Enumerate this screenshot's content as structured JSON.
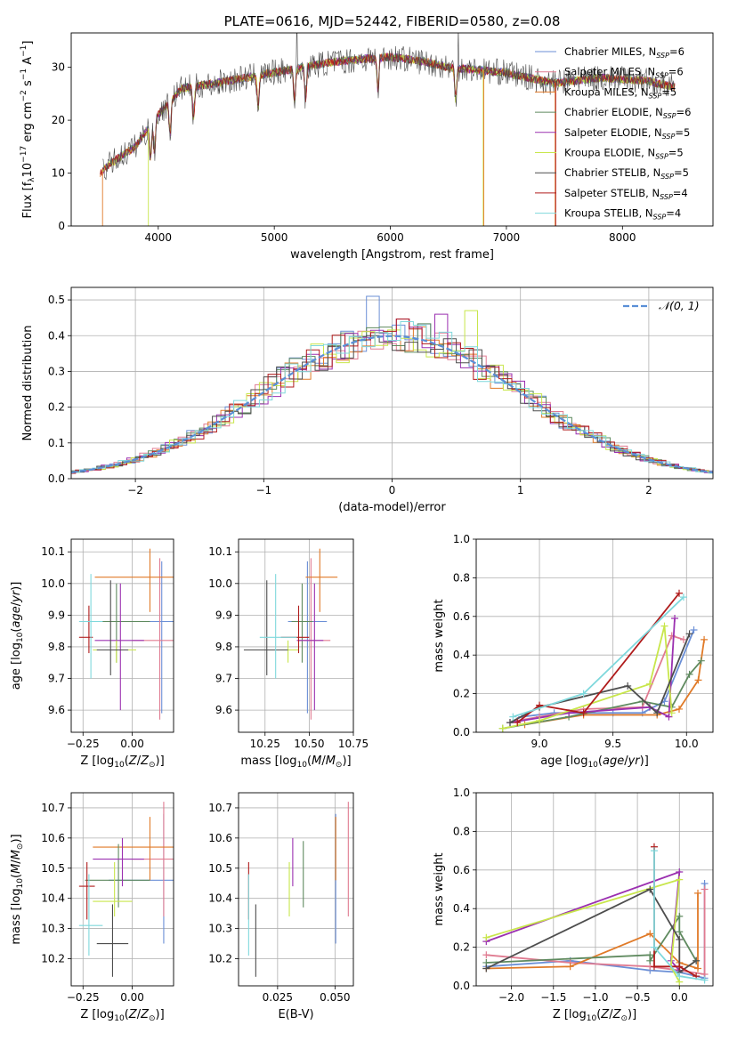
{
  "chart_data": [
    {
      "id": "spectrum",
      "type": "line",
      "title": "PLATE=0616, MJD=52442, FIBERID=0580, z=0.08",
      "xlabel": "wavelength [Angstrom, rest frame]",
      "ylabel": "Flux [f_λ10^-17 erg cm^-2 s^-1 A^-1]",
      "xlim": [
        3250,
        8780
      ],
      "ylim": [
        0,
        36.5
      ],
      "xticks": [
        4000,
        5000,
        6000,
        7000,
        8000
      ],
      "yticks": [
        0,
        10,
        20,
        30
      ],
      "legend_position": "right",
      "continuum": {
        "x": [
          3500,
          3600,
          3800,
          4000,
          4200,
          4500,
          5000,
          5500,
          6000,
          6300,
          6500,
          7000,
          7400,
          7800,
          8200,
          8500
        ],
        "y": [
          10,
          12,
          15,
          21,
          26,
          27,
          29,
          31,
          32,
          31,
          30,
          29,
          27,
          28,
          27.5,
          26
        ]
      },
      "series": [
        {
          "name": "Chabrier MILES, N_SSP=6",
          "color": "#6b8fd6"
        },
        {
          "name": "Salpeter MILES, N_SSP=6",
          "color": "#e07b91"
        },
        {
          "name": "Kroupa MILES, N_SSP=5",
          "color": "#e07a28"
        },
        {
          "name": "Chabrier ELODIE, N_SSP=6",
          "color": "#5f8a5f"
        },
        {
          "name": "Salpeter ELODIE, N_SSP=5",
          "color": "#9b30b0"
        },
        {
          "name": "Kroupa ELODIE, N_SSP=5",
          "color": "#c8e64b"
        },
        {
          "name": "Chabrier STELIB, N_SSP=5",
          "color": "#4d4d4d"
        },
        {
          "name": "Salpeter STELIB, N_SSP=4",
          "color": "#b01c1c"
        },
        {
          "name": "Kroupa STELIB, N_SSP=4",
          "color": "#7fd8dc"
        }
      ]
    },
    {
      "id": "residuals",
      "type": "line",
      "xlabel": "(data-model)/error",
      "ylabel": "Normed distribution",
      "xlim": [
        -2.5,
        2.5
      ],
      "ylim": [
        0,
        0.535
      ],
      "xticks": [
        -2,
        -1,
        0,
        1,
        2
      ],
      "yticks": [
        0.0,
        0.1,
        0.2,
        0.3,
        0.4,
        0.5
      ],
      "legend": "𝒩(0, 1)",
      "reference_curve": {
        "name": "N(0,1)",
        "color": "#5a8fd6"
      }
    },
    {
      "id": "age_vs_Z",
      "type": "scatter",
      "xlabel": "Z [log10(Z/Z⊙)]",
      "ylabel": "age [log10(age/yr)]",
      "xlim": [
        -0.31,
        0.21
      ],
      "ylim": [
        9.53,
        10.14
      ],
      "xticks": [
        -0.25,
        0.0
      ],
      "xticklabels": [
        "−0.25",
        "0.00"
      ],
      "yticks": [
        9.6,
        9.7,
        9.8,
        9.9,
        10.0,
        10.1
      ],
      "points": [
        {
          "color": "#6b8fd6",
          "x": 0.15,
          "y": 9.88,
          "xlo": -0.11,
          "xhi": 0.21,
          "ylo": 9.59,
          "yhi": 10.07
        },
        {
          "color": "#e07b91",
          "x": 0.14,
          "y": 9.82,
          "xlo": 0.0,
          "xhi": 0.21,
          "ylo": 9.57,
          "yhi": 10.08
        },
        {
          "color": "#e07a28",
          "x": 0.09,
          "y": 10.02,
          "xlo": -0.19,
          "xhi": 0.21,
          "ylo": 9.91,
          "yhi": 10.11
        },
        {
          "color": "#5f8a5f",
          "x": -0.08,
          "y": 9.88,
          "xlo": -0.23,
          "xhi": 0.09,
          "ylo": 9.75,
          "yhi": 10.0
        },
        {
          "color": "#9b30b0",
          "x": -0.06,
          "y": 9.82,
          "xlo": -0.19,
          "xhi": 0.06,
          "ylo": 9.6,
          "yhi": 10.0
        },
        {
          "color": "#c8e64b",
          "x": -0.08,
          "y": 9.79,
          "xlo": -0.2,
          "xhi": 0.02,
          "ylo": 9.75,
          "yhi": 9.82
        },
        {
          "color": "#4d4d4d",
          "x": -0.11,
          "y": 9.79,
          "xlo": -0.18,
          "xhi": -0.02,
          "ylo": 9.71,
          "yhi": 10.01
        },
        {
          "color": "#b01c1c",
          "x": -0.22,
          "y": 9.83,
          "xlo": -0.27,
          "xhi": -0.2,
          "ylo": 9.78,
          "yhi": 9.93
        },
        {
          "color": "#7fd8dc",
          "x": -0.21,
          "y": 9.88,
          "xlo": -0.27,
          "xhi": -0.15,
          "ylo": 9.7,
          "yhi": 10.03
        }
      ]
    },
    {
      "id": "age_vs_mass",
      "type": "scatter",
      "xlabel": "mass [log10(M/M⊙)]",
      "ylabel": "",
      "xlim": [
        10.1,
        10.75
      ],
      "ylim": [
        9.53,
        10.14
      ],
      "xticks": [
        10.25,
        10.5,
        10.75
      ],
      "yticks": [
        9.6,
        9.7,
        9.8,
        9.9,
        10.0,
        10.1
      ],
      "points": [
        {
          "color": "#6b8fd6",
          "x": 10.49,
          "y": 9.88,
          "xlo": 10.38,
          "xhi": 10.6,
          "ylo": 9.59,
          "yhi": 10.07
        },
        {
          "color": "#e07b91",
          "x": 10.51,
          "y": 9.82,
          "xlo": 10.44,
          "xhi": 10.62,
          "ylo": 9.57,
          "yhi": 10.08
        },
        {
          "color": "#e07a28",
          "x": 10.56,
          "y": 10.02,
          "xlo": 10.48,
          "xhi": 10.66,
          "ylo": 9.91,
          "yhi": 10.11
        },
        {
          "color": "#5f8a5f",
          "x": 10.46,
          "y": 9.88,
          "xlo": 10.4,
          "xhi": 10.52,
          "ylo": 9.75,
          "yhi": 10.0
        },
        {
          "color": "#9b30b0",
          "x": 10.53,
          "y": 9.82,
          "xlo": 10.43,
          "xhi": 10.58,
          "ylo": 9.6,
          "yhi": 10.0
        },
        {
          "color": "#c8e64b",
          "x": 10.38,
          "y": 9.79,
          "xlo": 10.35,
          "xhi": 10.44,
          "ylo": 9.75,
          "yhi": 9.82
        },
        {
          "color": "#4d4d4d",
          "x": 10.26,
          "y": 9.79,
          "xlo": 10.13,
          "xhi": 10.38,
          "ylo": 9.71,
          "yhi": 10.01
        },
        {
          "color": "#b01c1c",
          "x": 10.44,
          "y": 9.83,
          "xlo": 10.34,
          "xhi": 10.5,
          "ylo": 9.78,
          "yhi": 9.93
        },
        {
          "color": "#7fd8dc",
          "x": 10.31,
          "y": 9.83,
          "xlo": 10.22,
          "xhi": 10.43,
          "ylo": 9.7,
          "yhi": 10.03
        }
      ]
    },
    {
      "id": "mass_weight_vs_age",
      "type": "line",
      "xlabel": "age log10(age/yr)",
      "ylabel": "mass weight",
      "xlim": [
        8.57,
        10.18
      ],
      "ylim": [
        0,
        1
      ],
      "xticks": [
        9.0,
        9.5,
        10.0
      ],
      "yticks": [
        0.0,
        0.2,
        0.4,
        0.6,
        0.8,
        1.0
      ],
      "series": [
        {
          "color": "#6b8fd6",
          "x": [
            8.88,
            9.1,
            9.5,
            9.7,
            9.85,
            10.05
          ],
          "y": [
            0.08,
            0.1,
            0.1,
            0.1,
            0.16,
            0.53
          ]
        },
        {
          "color": "#e07b91",
          "x": [
            8.85,
            9.0,
            9.3,
            9.7,
            9.9,
            9.98
          ],
          "y": [
            0.06,
            0.08,
            0.12,
            0.13,
            0.5,
            0.48
          ]
        },
        {
          "color": "#e07a28",
          "x": [
            8.9,
            9.3,
            9.8,
            9.95,
            10.08,
            10.12
          ],
          "y": [
            0.04,
            0.09,
            0.09,
            0.12,
            0.27,
            0.48
          ]
        },
        {
          "color": "#5f8a5f",
          "x": [
            8.75,
            9.2,
            9.7,
            9.9,
            10.02,
            10.1
          ],
          "y": [
            0.02,
            0.08,
            0.16,
            0.13,
            0.3,
            0.37
          ]
        },
        {
          "color": "#9b30b0",
          "x": [
            8.8,
            9.2,
            9.75,
            9.88,
            9.92
          ],
          "y": [
            0.05,
            0.1,
            0.13,
            0.08,
            0.59
          ]
        },
        {
          "color": "#c8e64b",
          "x": [
            8.75,
            9.0,
            9.75,
            9.85,
            9.9
          ],
          "y": [
            0.02,
            0.06,
            0.25,
            0.55,
            0.1
          ]
        },
        {
          "color": "#4d4d4d",
          "x": [
            8.8,
            9.0,
            9.6,
            9.8,
            10.02
          ],
          "y": [
            0.05,
            0.13,
            0.24,
            0.1,
            0.51
          ]
        },
        {
          "color": "#b01c1c",
          "x": [
            8.85,
            9.0,
            9.3,
            9.95
          ],
          "y": [
            0.05,
            0.14,
            0.1,
            0.72
          ]
        },
        {
          "color": "#7fd8dc",
          "x": [
            8.82,
            9.3,
            9.98
          ],
          "y": [
            0.08,
            0.2,
            0.7
          ]
        }
      ]
    },
    {
      "id": "mass_vs_Z",
      "type": "scatter",
      "xlabel": "Z [log10(Z/Z⊙)]",
      "ylabel": "mass [log10(M/M⊙)]",
      "xlim": [
        -0.31,
        0.21
      ],
      "ylim": [
        10.11,
        10.75
      ],
      "xticks": [
        -0.25,
        0.0
      ],
      "xticklabels": [
        "−0.25",
        "0.00"
      ],
      "yticks": [
        10.2,
        10.3,
        10.4,
        10.5,
        10.6,
        10.7
      ],
      "points": [
        {
          "color": "#6b8fd6",
          "x": 0.16,
          "y": 10.46,
          "xlo": -0.12,
          "xhi": 0.21,
          "ylo": 10.25,
          "yhi": 10.68
        },
        {
          "color": "#e07b91",
          "x": 0.16,
          "y": 10.53,
          "xlo": 0.0,
          "xhi": 0.21,
          "ylo": 10.34,
          "yhi": 10.72
        },
        {
          "color": "#e07a28",
          "x": 0.09,
          "y": 10.57,
          "xlo": -0.2,
          "xhi": 0.21,
          "ylo": 10.46,
          "yhi": 10.67
        },
        {
          "color": "#5f8a5f",
          "x": -0.07,
          "y": 10.46,
          "xlo": -0.24,
          "xhi": 0.09,
          "ylo": 10.37,
          "yhi": 10.58
        },
        {
          "color": "#9b30b0",
          "x": -0.05,
          "y": 10.53,
          "xlo": -0.2,
          "xhi": 0.06,
          "ylo": 10.44,
          "yhi": 10.6
        },
        {
          "color": "#c8e64b",
          "x": -0.09,
          "y": 10.39,
          "xlo": -0.2,
          "xhi": -0.0,
          "ylo": 10.34,
          "yhi": 10.52
        },
        {
          "color": "#4d4d4d",
          "x": -0.1,
          "y": 10.25,
          "xlo": -0.18,
          "xhi": -0.02,
          "ylo": 10.14,
          "yhi": 10.38
        },
        {
          "color": "#b01c1c",
          "x": -0.23,
          "y": 10.44,
          "xlo": -0.27,
          "xhi": -0.19,
          "ylo": 10.33,
          "yhi": 10.52
        },
        {
          "color": "#7fd8dc",
          "x": -0.22,
          "y": 10.31,
          "xlo": -0.27,
          "xhi": -0.15,
          "ylo": 10.21,
          "yhi": 10.48
        }
      ]
    },
    {
      "id": "mass_vs_EBV",
      "type": "scatter",
      "xlabel": "E(B-V)",
      "ylabel": "",
      "xlim": [
        0.008,
        0.058
      ],
      "ylim": [
        10.11,
        10.75
      ],
      "xticks": [
        0.025,
        0.05
      ],
      "xticklabels": [
        "0.025",
        "0.050"
      ],
      "yticks": [
        10.2,
        10.3,
        10.4,
        10.5,
        10.6,
        10.7
      ],
      "points": [
        {
          "color": "#6b8fd6",
          "x": 0.0503,
          "ylo": 10.25,
          "yhi": 10.68
        },
        {
          "color": "#e07b91",
          "x": 0.0558,
          "ylo": 10.34,
          "yhi": 10.72
        },
        {
          "color": "#e07a28",
          "x": 0.0503,
          "ylo": 10.46,
          "yhi": 10.67
        },
        {
          "color": "#5f8a5f",
          "x": 0.0362,
          "ylo": 10.37,
          "yhi": 10.59
        },
        {
          "color": "#9b30b0",
          "x": 0.0316,
          "ylo": 10.44,
          "yhi": 10.6
        },
        {
          "color": "#c8e64b",
          "x": 0.0301,
          "ylo": 10.34,
          "yhi": 10.52
        },
        {
          "color": "#4d4d4d",
          "x": 0.0155,
          "ylo": 10.14,
          "yhi": 10.38
        },
        {
          "color": "#b01c1c",
          "x": 0.0124,
          "ylo": 10.33,
          "yhi": 10.52
        },
        {
          "color": "#7fd8dc",
          "x": 0.0124,
          "ylo": 10.21,
          "yhi": 10.48
        }
      ]
    },
    {
      "id": "mass_weight_vs_Z",
      "type": "line",
      "xlabel": "Z [log10(Z/Z⊙)]",
      "ylabel": "mass weight",
      "xlim": [
        -2.42,
        0.4
      ],
      "ylim": [
        0,
        1
      ],
      "xticks": [
        -2.0,
        -1.5,
        -1.0,
        -0.5,
        0.0
      ],
      "xticklabels": [
        "−2.0",
        "−1.5",
        "−1.0",
        "−0.5",
        "0.0"
      ],
      "yticks": [
        0.0,
        0.2,
        0.4,
        0.6,
        0.8,
        1.0
      ],
      "series": [
        {
          "color": "#6b8fd6",
          "x": [
            -2.3,
            -1.3,
            -0.35,
            0.0,
            0.3,
            0.3
          ],
          "y": [
            0.1,
            0.13,
            0.08,
            0.07,
            0.04,
            0.53
          ]
        },
        {
          "color": "#e07b91",
          "x": [
            -2.3,
            -1.3,
            -0.35,
            0.0,
            0.3,
            0.3
          ],
          "y": [
            0.16,
            0.12,
            0.1,
            0.08,
            0.06,
            0.5
          ]
        },
        {
          "color": "#e07a28",
          "x": [
            -2.3,
            -1.3,
            -0.35,
            0.0,
            0.22,
            0.22
          ],
          "y": [
            0.09,
            0.1,
            0.27,
            0.12,
            0.09,
            0.48
          ]
        },
        {
          "color": "#5f8a5f",
          "x": [
            -2.3,
            -0.35,
            -0.35,
            0.0,
            0.0,
            0.2
          ],
          "y": [
            0.12,
            0.16,
            0.13,
            0.36,
            0.28,
            0.13
          ]
        },
        {
          "color": "#9b30b0",
          "x": [
            -2.3,
            0.0,
            -0.1,
            0.0
          ],
          "y": [
            0.23,
            0.59,
            0.13,
            0.08
          ]
        },
        {
          "color": "#c8e64b",
          "x": [
            -2.3,
            0.0,
            -0.1,
            0.0
          ],
          "y": [
            0.25,
            0.55,
            0.1,
            0.02
          ]
        },
        {
          "color": "#4d4d4d",
          "x": [
            -2.3,
            -0.35,
            0.0,
            0.0,
            0.2
          ],
          "y": [
            0.09,
            0.5,
            0.24,
            0.07,
            0.13
          ]
        },
        {
          "color": "#b01c1c",
          "x": [
            -0.3,
            -0.3,
            0.0,
            0.2
          ],
          "y": [
            0.72,
            0.1,
            0.1,
            0.05
          ]
        },
        {
          "color": "#7fd8dc",
          "x": [
            -0.3,
            -0.3,
            0.0,
            0.3
          ],
          "y": [
            0.7,
            0.2,
            0.05,
            0.03
          ]
        }
      ]
    }
  ]
}
